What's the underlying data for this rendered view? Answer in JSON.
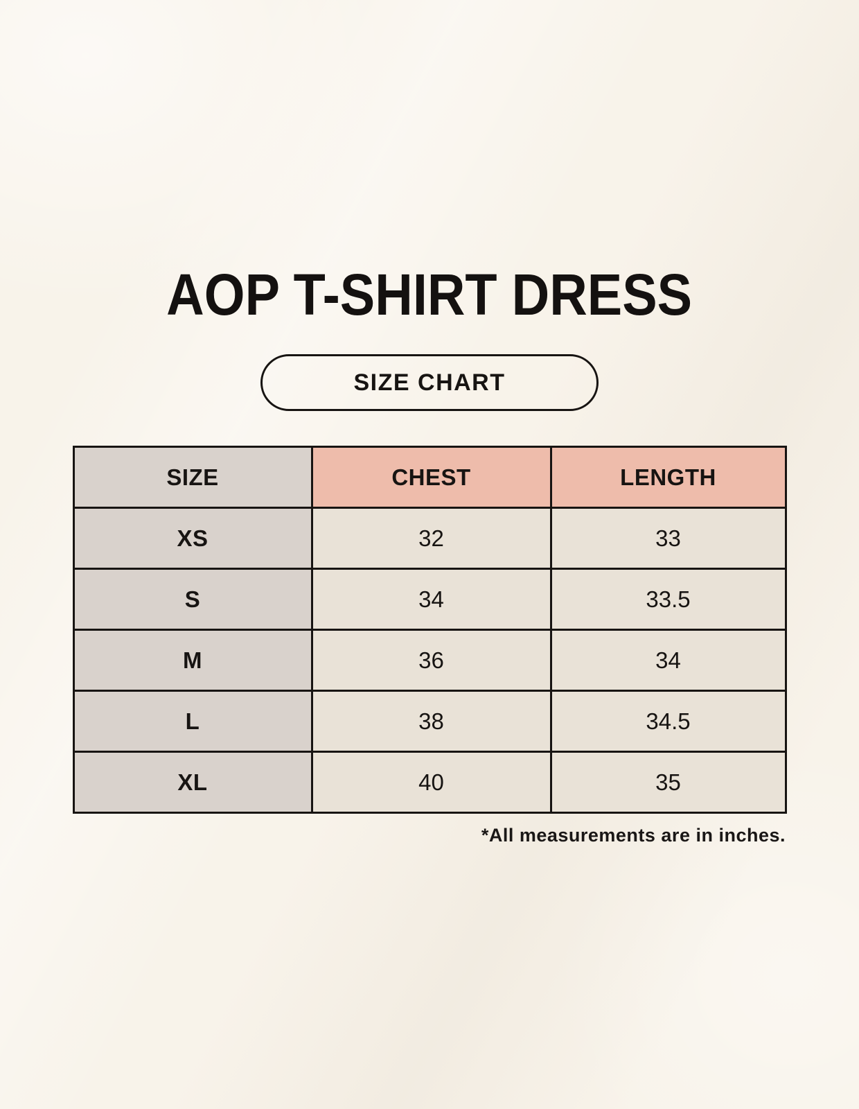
{
  "page": {
    "title": "AOP T-SHIRT DRESS",
    "badge_label": "SIZE CHART",
    "footnote": "*All measurements are in inches."
  },
  "chart_data": {
    "type": "table",
    "title": "AOP T-SHIRT DRESS",
    "subtitle": "SIZE CHART",
    "columns": [
      "SIZE",
      "CHEST",
      "LENGTH"
    ],
    "rows": [
      [
        "XS",
        "32",
        "33"
      ],
      [
        "S",
        "34",
        "33.5"
      ],
      [
        "M",
        "36",
        "34"
      ],
      [
        "L",
        "38",
        "34.5"
      ],
      [
        "XL",
        "40",
        "35"
      ]
    ],
    "units_note": "*All measurements are in inches."
  },
  "colors": {
    "background": "#f8f3ea",
    "size_column_bg": "#d9d2cc",
    "measure_header_bg": "#eebcab",
    "value_cell_bg": "#e9e2d7",
    "table_border": "#171412",
    "text": "#171412"
  }
}
